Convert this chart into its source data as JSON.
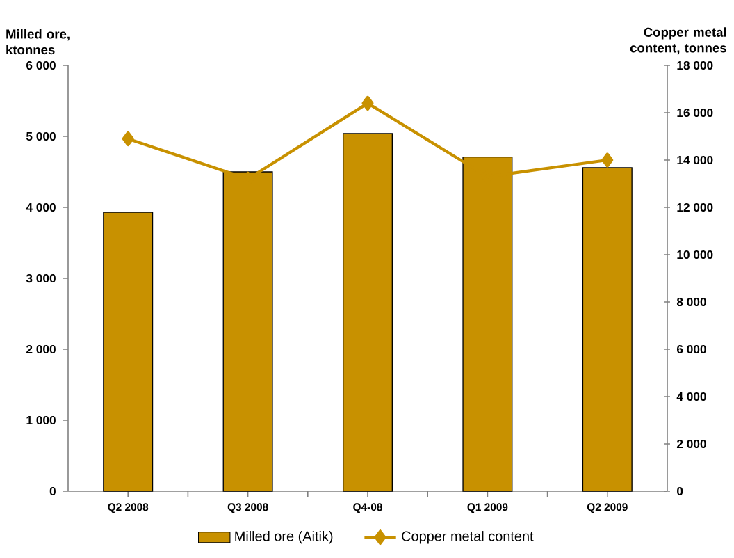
{
  "chart_data": {
    "type": "bar",
    "categories": [
      "Q2 2008",
      "Q3 2008",
      "Q4-08",
      "Q1 2009",
      "Q2 2009"
    ],
    "ylabel": "Milled ore, ktonnes",
    "y2label": "Copper metal content, tonnes",
    "series": [
      {
        "name": "Milled ore (Aitik)",
        "color": "#c89100",
        "values": [
          3930,
          4500,
          5040,
          4710,
          4560
        ]
      },
      {
        "name": "Copper metal content",
        "type": "line",
        "axis": "y2",
        "marker": "diamond",
        "color": "#c89100",
        "values": [
          14900,
          13200,
          16400,
          13300,
          14000
        ]
      }
    ],
    "ylim": [
      0,
      6000
    ],
    "yticks": [
      {
        "value": 0,
        "label": "0"
      },
      {
        "value": 1000,
        "label": "1 000"
      },
      {
        "value": 2000,
        "label": "2 000"
      },
      {
        "value": 3000,
        "label": "3 000"
      },
      {
        "value": 4000,
        "label": "4 000"
      },
      {
        "value": 5000,
        "label": "5 000"
      },
      {
        "value": 6000,
        "label": "6 000"
      }
    ],
    "y2lim": [
      0,
      18000
    ],
    "y2ticks": [
      {
        "value": 0,
        "label": "0"
      },
      {
        "value": 2000,
        "label": "2 000"
      },
      {
        "value": 4000,
        "label": "4 000"
      },
      {
        "value": 6000,
        "label": "6 000"
      },
      {
        "value": 8000,
        "label": "8 000"
      },
      {
        "value": 10000,
        "label": "10 000"
      },
      {
        "value": 12000,
        "label": "12 000"
      },
      {
        "value": 14000,
        "label": "14 000"
      },
      {
        "value": 16000,
        "label": "16 000"
      },
      {
        "value": 18000,
        "label": "18 000"
      }
    ],
    "legend": "bottom",
    "grid": false
  }
}
